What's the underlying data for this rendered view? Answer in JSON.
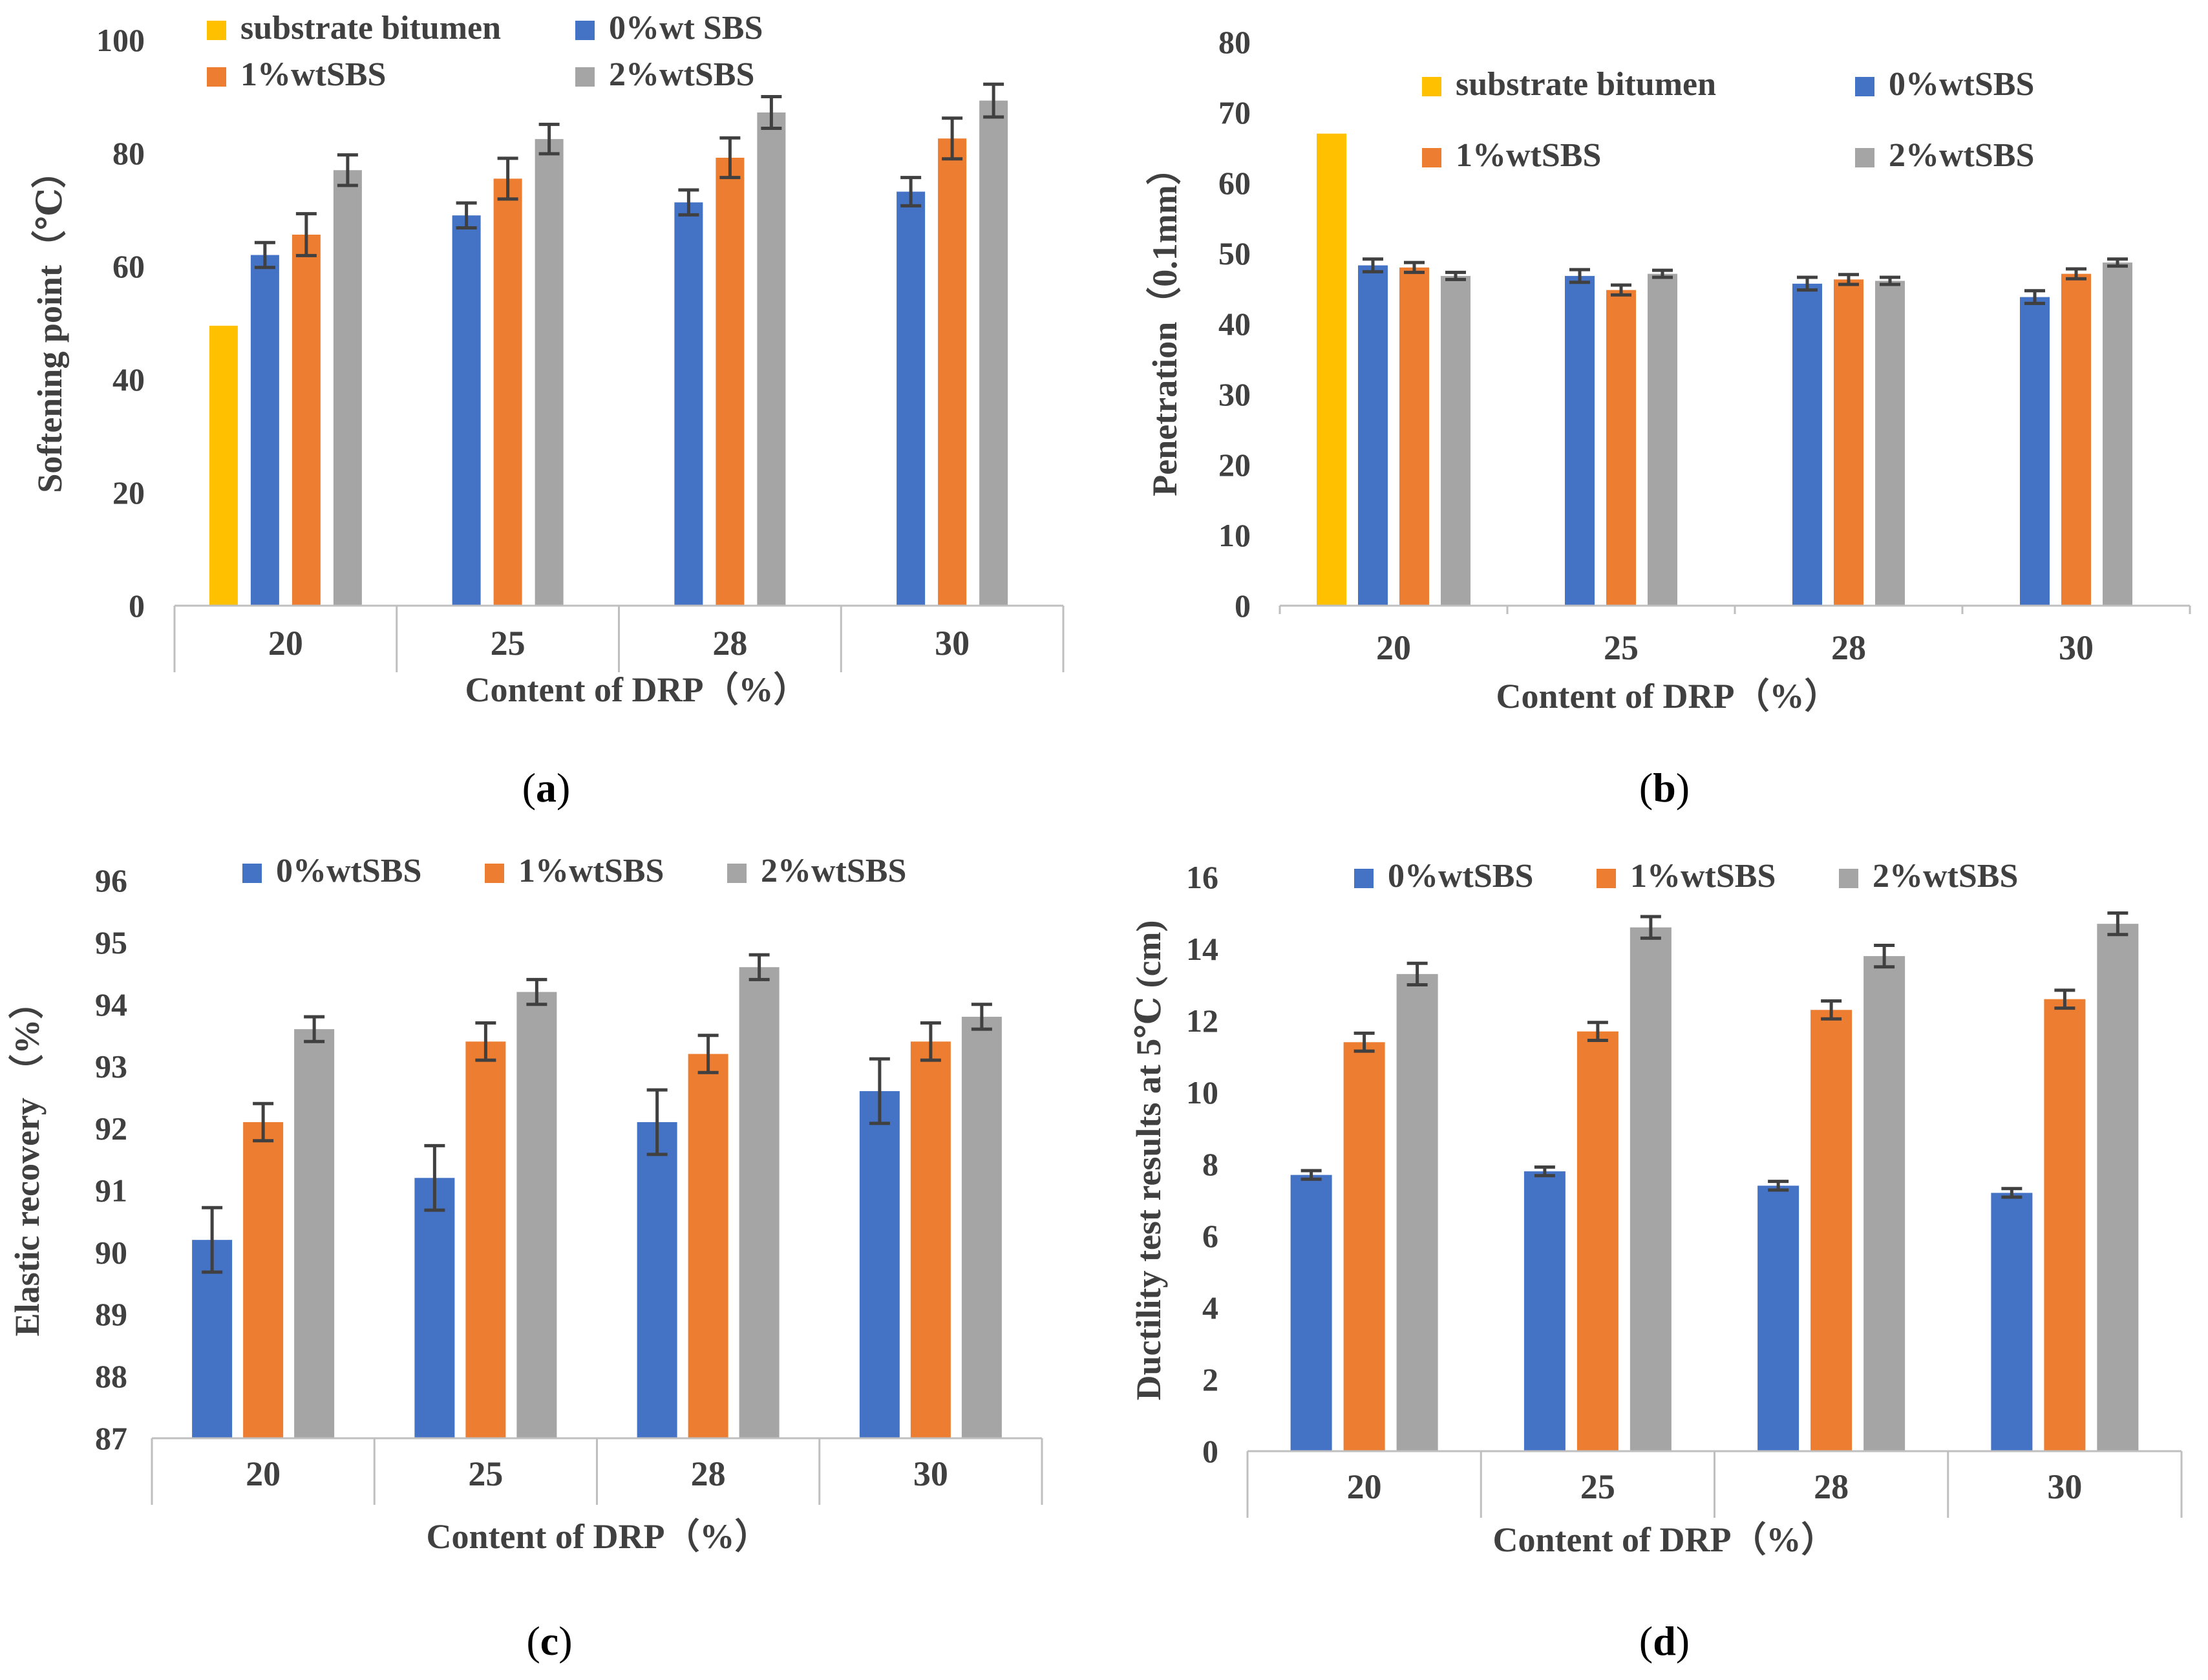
{
  "colors": {
    "substrate": "#FFC000",
    "sbs0": "#4472C4",
    "sbs1": "#ED7D31",
    "sbs2": "#A5A5A5",
    "axis": "#BFBFBF",
    "text": "#404040",
    "error": "#404040"
  },
  "chart_data": [
    {
      "id": "a",
      "type": "bar",
      "panel_label": {
        "open": "(",
        "letter": "a",
        "close": ")"
      },
      "title": "",
      "xlabel": "Content of DRP（%）",
      "ylabel": "Softening point（℃）",
      "ylim": [
        0,
        100
      ],
      "yticks": [
        0,
        20,
        40,
        60,
        80,
        100
      ],
      "categories": [
        "20",
        "25",
        "28",
        "30"
      ],
      "legend_position": "top",
      "series": [
        {
          "name": "substrate bitumen",
          "key": "substrate",
          "values": [
            49.5,
            null,
            null,
            null
          ],
          "errors": [
            0,
            null,
            null,
            null
          ]
        },
        {
          "name": "0%wt SBS",
          "key": "sbs0",
          "values": [
            62,
            69,
            71.3,
            73.2
          ],
          "errors": [
            2.2,
            2.2,
            2.2,
            2.5
          ]
        },
        {
          "name": "1%wtSBS",
          "key": "sbs1",
          "values": [
            65.6,
            75.5,
            79.2,
            82.6
          ],
          "errors": [
            3.7,
            3.6,
            3.5,
            3.6
          ]
        },
        {
          "name": "2%wtSBS",
          "key": "sbs2",
          "values": [
            77,
            82.5,
            87.2,
            89.3
          ],
          "errors": [
            2.7,
            2.6,
            2.8,
            2.9
          ]
        }
      ]
    },
    {
      "id": "b",
      "type": "bar",
      "panel_label": {
        "open": "(",
        "letter": "b",
        "close": ")"
      },
      "title": "",
      "xlabel": "Content of DRP（%）",
      "ylabel": "Penetration（0.1mm）",
      "ylim": [
        0,
        80
      ],
      "yticks": [
        0,
        10,
        20,
        30,
        40,
        50,
        60,
        70,
        80
      ],
      "categories": [
        "20",
        "25",
        "28",
        "30"
      ],
      "legend_position": "top-right",
      "series": [
        {
          "name": "substrate bitumen",
          "key": "substrate",
          "values": [
            67,
            null,
            null,
            null
          ],
          "errors": [
            0,
            null,
            null,
            null
          ]
        },
        {
          "name": "0%wtSBS",
          "key": "sbs0",
          "values": [
            48.3,
            46.8,
            45.7,
            43.8
          ],
          "errors": [
            0.9,
            0.9,
            0.9,
            0.9
          ]
        },
        {
          "name": "1%wtSBS",
          "key": "sbs1",
          "values": [
            48,
            44.8,
            46.3,
            47.1
          ],
          "errors": [
            0.7,
            0.7,
            0.7,
            0.7
          ]
        },
        {
          "name": "2%wtSBS",
          "key": "sbs2",
          "values": [
            46.8,
            47.1,
            46.1,
            48.7
          ],
          "errors": [
            0.5,
            0.5,
            0.5,
            0.5
          ]
        }
      ]
    },
    {
      "id": "c",
      "type": "bar",
      "panel_label": {
        "open": "(",
        "letter": "c",
        "close": ")"
      },
      "title": "",
      "xlabel": "Content of DRP（%）",
      "ylabel": "Elastic recovery （%）",
      "ylim": [
        87,
        96
      ],
      "yticks": [
        87,
        88,
        89,
        90,
        91,
        92,
        93,
        94,
        95,
        96
      ],
      "categories": [
        "20",
        "25",
        "28",
        "30"
      ],
      "legend_position": "top",
      "series": [
        {
          "name": "0%wtSBS",
          "key": "sbs0",
          "values": [
            90.2,
            91.2,
            92.1,
            92.6
          ],
          "errors": [
            0.52,
            0.52,
            0.52,
            0.52
          ]
        },
        {
          "name": "1%wtSBS",
          "key": "sbs1",
          "values": [
            92.1,
            93.4,
            93.2,
            93.4
          ],
          "errors": [
            0.3,
            0.3,
            0.3,
            0.3
          ]
        },
        {
          "name": "2%wtSBS",
          "key": "sbs2",
          "values": [
            93.6,
            94.2,
            94.6,
            93.8
          ],
          "errors": [
            0.2,
            0.2,
            0.2,
            0.2
          ]
        }
      ]
    },
    {
      "id": "d",
      "type": "bar",
      "panel_label": {
        "open": "(",
        "letter": "d",
        "close": ")"
      },
      "title": "",
      "xlabel": "Content of DRP（%）",
      "ylabel": "Ductility test results at 5℃ (cm)",
      "ylim": [
        0,
        16
      ],
      "yticks": [
        0,
        2,
        4,
        6,
        8,
        10,
        12,
        14,
        16
      ],
      "categories": [
        "20",
        "25",
        "28",
        "30"
      ],
      "legend_position": "top",
      "series": [
        {
          "name": "0%wtSBS",
          "key": "sbs0",
          "values": [
            7.7,
            7.8,
            7.4,
            7.2
          ],
          "errors": [
            0.12,
            0.12,
            0.12,
            0.12
          ]
        },
        {
          "name": "1%wtSBS",
          "key": "sbs1",
          "values": [
            11.4,
            11.7,
            12.3,
            12.6
          ],
          "errors": [
            0.25,
            0.25,
            0.25,
            0.25
          ]
        },
        {
          "name": "2%wtSBS",
          "key": "sbs2",
          "values": [
            13.3,
            14.6,
            13.8,
            14.7
          ],
          "errors": [
            0.3,
            0.3,
            0.3,
            0.3
          ]
        }
      ]
    }
  ]
}
